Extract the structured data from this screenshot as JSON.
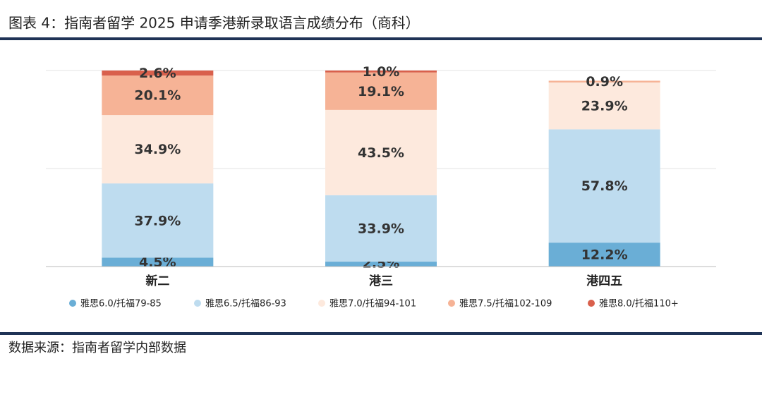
{
  "chart_data": {
    "type": "stacked_bar",
    "title": "图表 4：指南者留学 2025 申请季港新录取语言成绩分布（商科）",
    "source": "数据来源：指南者留学内部数据",
    "categories": [
      "新二",
      "港三",
      "港四五"
    ],
    "ylim": [
      0,
      100
    ],
    "yticks": [
      0,
      50,
      100
    ],
    "show_ytick_labels": false,
    "grid": true,
    "legend": "bottom",
    "series": [
      {
        "name": "雅思6.0/托福79-85",
        "color": "#6aaed6",
        "values": [
          4.5,
          2.5,
          12.2
        ],
        "value_labels": [
          "4.5%",
          "2.5%",
          "12.2%"
        ]
      },
      {
        "name": "雅思6.5/托福86-93",
        "color": "#bedcef",
        "values": [
          37.9,
          33.9,
          57.8
        ],
        "value_labels": [
          "37.9%",
          "33.9%",
          "57.8%"
        ]
      },
      {
        "name": "雅思7.0/托福94-101",
        "color": "#fde9dd",
        "values": [
          34.9,
          43.5,
          23.9
        ],
        "value_labels": [
          "34.9%",
          "43.5%",
          "23.9%"
        ]
      },
      {
        "name": "雅思7.5/托福102-109",
        "color": "#f6b396",
        "values": [
          20.1,
          19.1,
          0.9
        ],
        "value_labels": [
          "20.1%",
          "19.1%",
          "0.9%"
        ]
      },
      {
        "name": "雅思8.0/托福110+",
        "color": "#d9604c",
        "values": [
          2.6,
          1.0,
          null
        ],
        "value_labels": [
          "2.6%",
          "1.0%",
          null
        ]
      }
    ]
  }
}
